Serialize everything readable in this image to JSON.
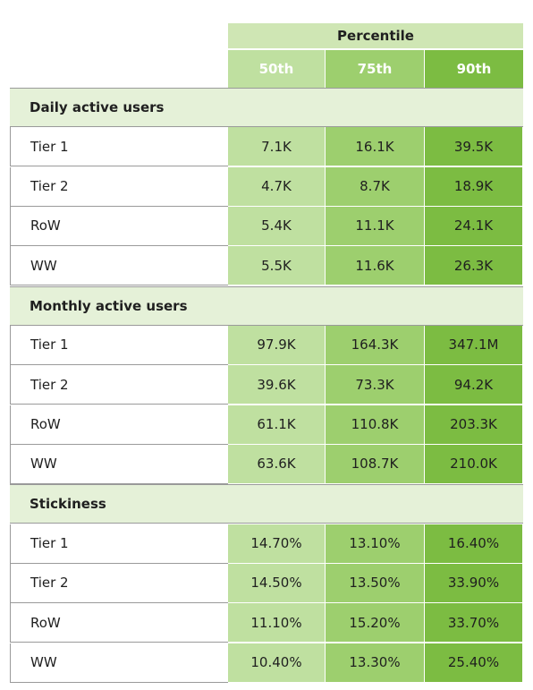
{
  "header": {
    "group_label": "Percentile",
    "columns": [
      "50th",
      "75th",
      "90th"
    ]
  },
  "sections": [
    {
      "title": "Daily active users",
      "rows": [
        {
          "label": "Tier 1",
          "values": [
            "7.1K",
            "16.1K",
            "39.5K"
          ]
        },
        {
          "label": "Tier 2",
          "values": [
            "4.7K",
            "8.7K",
            "18.9K"
          ]
        },
        {
          "label": "RoW",
          "values": [
            "5.4K",
            "11.1K",
            "24.1K"
          ]
        },
        {
          "label": "WW",
          "values": [
            "5.5K",
            "11.6K",
            "26.3K"
          ]
        }
      ]
    },
    {
      "title": "Monthly active users",
      "rows": [
        {
          "label": "Tier 1",
          "values": [
            "97.9K",
            "164.3K",
            "347.1M"
          ]
        },
        {
          "label": "Tier 2",
          "values": [
            "39.6K",
            "73.3K",
            "94.2K"
          ]
        },
        {
          "label": "RoW",
          "values": [
            "61.1K",
            "110.8K",
            "203.3K"
          ]
        },
        {
          "label": "WW",
          "values": [
            "63.6K",
            "108.7K",
            "210.0K"
          ]
        }
      ]
    },
    {
      "title": "Stickiness",
      "rows": [
        {
          "label": "Tier 1",
          "values": [
            "14.70%",
            "13.10%",
            "16.40%"
          ]
        },
        {
          "label": "Tier 2",
          "values": [
            "14.50%",
            "13.50%",
            "33.90%"
          ]
        },
        {
          "label": "RoW",
          "values": [
            "11.10%",
            "15.20%",
            "33.70%"
          ]
        },
        {
          "label": "WW",
          "values": [
            "10.40%",
            "13.30%",
            "25.40%"
          ]
        }
      ]
    }
  ],
  "colors": {
    "p50": "#bfe0a0",
    "p75": "#9dcf6e",
    "p90": "#7cbc42",
    "section_bg": "#e5f1d8",
    "header_bg": "#cfe6b4"
  },
  "chart_data": {
    "type": "table",
    "column_group": "Percentile",
    "columns": [
      "50th",
      "75th",
      "90th"
    ],
    "sections": [
      {
        "name": "Daily active users",
        "rows": [
          {
            "label": "Tier 1",
            "values": [
              "7.1K",
              "16.1K",
              "39.5K"
            ]
          },
          {
            "label": "Tier 2",
            "values": [
              "4.7K",
              "8.7K",
              "18.9K"
            ]
          },
          {
            "label": "RoW",
            "values": [
              "5.4K",
              "11.1K",
              "24.1K"
            ]
          },
          {
            "label": "WW",
            "values": [
              "5.5K",
              "11.6K",
              "26.3K"
            ]
          }
        ]
      },
      {
        "name": "Monthly active users",
        "rows": [
          {
            "label": "Tier 1",
            "values": [
              "97.9K",
              "164.3K",
              "347.1M"
            ]
          },
          {
            "label": "Tier 2",
            "values": [
              "39.6K",
              "73.3K",
              "94.2K"
            ]
          },
          {
            "label": "RoW",
            "values": [
              "61.1K",
              "110.8K",
              "203.3K"
            ]
          },
          {
            "label": "WW",
            "values": [
              "63.6K",
              "108.7K",
              "210.0K"
            ]
          }
        ]
      },
      {
        "name": "Stickiness",
        "rows": [
          {
            "label": "Tier 1",
            "values": [
              "14.70%",
              "13.10%",
              "16.40%"
            ]
          },
          {
            "label": "Tier 2",
            "values": [
              "14.50%",
              "13.50%",
              "33.90%"
            ]
          },
          {
            "label": "RoW",
            "values": [
              "11.10%",
              "15.20%",
              "33.70%"
            ]
          },
          {
            "label": "WW",
            "values": [
              "10.40%",
              "13.30%",
              "25.40%"
            ]
          }
        ]
      }
    ]
  }
}
